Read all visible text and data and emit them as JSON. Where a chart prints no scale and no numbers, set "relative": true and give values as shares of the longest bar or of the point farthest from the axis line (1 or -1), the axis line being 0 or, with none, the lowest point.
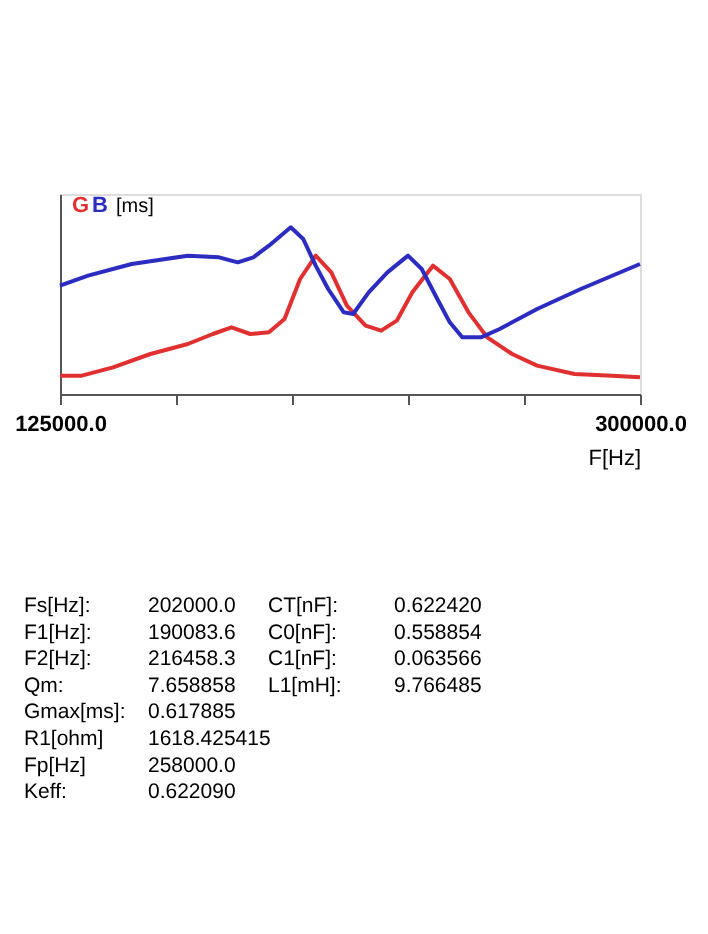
{
  "chart_data": {
    "type": "line",
    "relative": true,
    "ylabel": "[ms]",
    "xlabel": "F[Hz]",
    "xlim": [
      125000,
      300000
    ],
    "xticks": [
      {
        "value": 125000,
        "label": "125000.0"
      },
      {
        "value": 160000,
        "label": null
      },
      {
        "value": 195000,
        "label": null
      },
      {
        "value": 230000,
        "label": null
      },
      {
        "value": 265000,
        "label": null
      },
      {
        "value": 300000,
        "label": "300000.0"
      }
    ],
    "series": [
      {
        "name": "G",
        "color": "#e03030",
        "x": [
          125000,
          131586,
          140995,
          152285,
          163575,
          171102,
          176747,
          182392,
          188038,
          192742,
          197446,
          202151,
          206855,
          211559,
          217204,
          221909,
          226613,
          231317,
          237527,
          242608,
          248253,
          253898,
          261425,
          268952,
          280242,
          291532,
          300000
        ],
        "values": [
          0.11,
          0.11,
          0.16,
          0.24,
          0.3,
          0.36,
          0.4,
          0.36,
          0.37,
          0.45,
          0.69,
          0.83,
          0.73,
          0.53,
          0.41,
          0.38,
          0.44,
          0.61,
          0.77,
          0.69,
          0.49,
          0.34,
          0.24,
          0.17,
          0.12,
          0.11,
          0.1
        ]
      },
      {
        "name": "B",
        "color": "#2c2cc0",
        "x": [
          125000,
          133468,
          146640,
          163575,
          172983,
          178629,
          183333,
          188038,
          194624,
          198387,
          202151,
          205914,
          210618,
          213441,
          218145,
          223790,
          230000,
          234140,
          238844,
          242608,
          246371,
          252016,
          257661,
          268952,
          282124,
          300000
        ],
        "values": [
          0.65,
          0.71,
          0.78,
          0.83,
          0.82,
          0.79,
          0.82,
          0.89,
          1.0,
          0.93,
          0.77,
          0.63,
          0.49,
          0.48,
          0.61,
          0.73,
          0.83,
          0.75,
          0.57,
          0.43,
          0.34,
          0.34,
          0.39,
          0.51,
          0.63,
          0.78
        ]
      }
    ],
    "grid": false,
    "marker": "none",
    "line_style": "solid",
    "annotations": [
      "Fs[Hz]:",
      "202000.0",
      "F1[Hz]:",
      "190083.6",
      "F2[Hz]:",
      "216458.3",
      "Qm:",
      "7.658858",
      "Gmax[ms]:",
      "0.617885",
      "R1[ohm]",
      "1618.425415",
      "Fp[Hz]",
      "258000.0",
      "Keff:",
      "0.622090",
      "CT[nF]:",
      "0.622420",
      "C0[nF]:",
      "0.558854",
      "C1[nF]:",
      "0.063566",
      "L1[mH]:",
      "9.766485"
    ]
  }
}
